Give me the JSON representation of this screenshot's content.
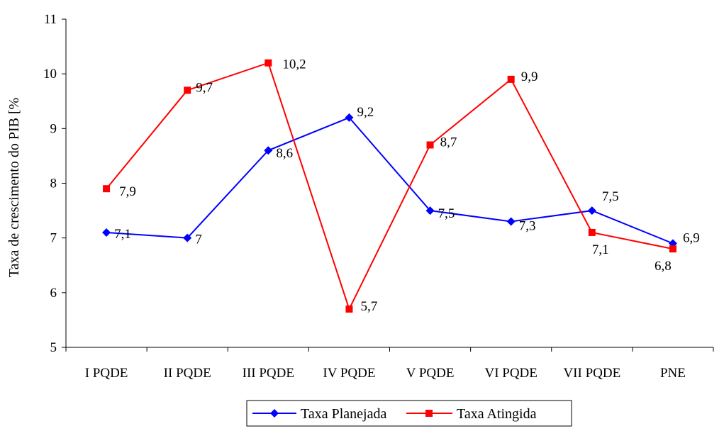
{
  "chart_data": {
    "type": "line",
    "title": "",
    "xlabel": "",
    "ylabel": "Taxa de crescimento do PIB [%",
    "categories": [
      "I PQDE",
      "II PQDE",
      "III PQDE",
      "IV PQDE",
      "V PQDE",
      "VI PQDE",
      "VII PQDE",
      "PNE"
    ],
    "ylim": [
      5,
      11
    ],
    "yticks": [
      5,
      6,
      7,
      8,
      9,
      10,
      11
    ],
    "grid": false,
    "legend_position": "bottom",
    "series": [
      {
        "name": "Taxa Planejada",
        "color": "#0000ff",
        "marker": "diamond",
        "values": [
          7.1,
          7,
          8.6,
          9.2,
          7.5,
          7.3,
          7.5,
          6.9
        ],
        "labels": [
          "7,1",
          "7",
          "8,6",
          "9,2",
          "7,5",
          "7,3",
          "7,5",
          "6,9"
        ]
      },
      {
        "name": "Taxa Atingida",
        "color": "#ff0000",
        "marker": "square",
        "values": [
          7.9,
          9.7,
          10.2,
          5.7,
          8.7,
          9.9,
          7.1,
          6.8
        ],
        "labels": [
          "7,9",
          "9,7",
          "10,2",
          "5,7",
          "8,7",
          "9,9",
          "7,1",
          "6,8"
        ]
      }
    ]
  }
}
